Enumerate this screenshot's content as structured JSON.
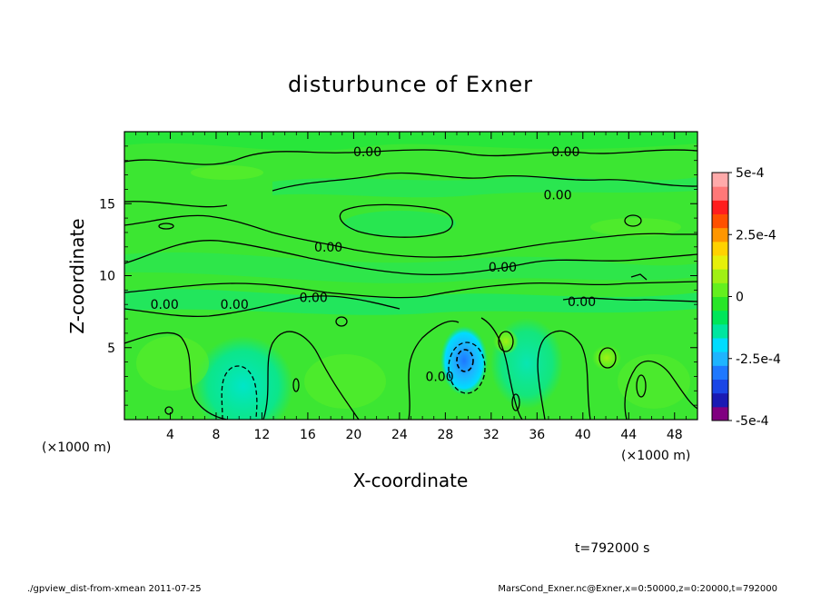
{
  "chart_data": {
    "type": "heatmap",
    "title": "disturbunce of Exner",
    "xlabel": "X-coordinate",
    "ylabel": "Z-coordinate",
    "x_unit": "(×1000 m)",
    "y_unit": "(×1000 m)",
    "xlim": [
      0,
      50
    ],
    "ylim": [
      0,
      20
    ],
    "x_ticks": [
      4,
      8,
      12,
      16,
      20,
      24,
      28,
      32,
      36,
      40,
      44,
      48
    ],
    "y_ticks": [
      5,
      10,
      15
    ],
    "colorbar": {
      "min": -0.0005,
      "max": 0.0005,
      "labels": [
        "5e-4",
        "2.5e-4",
        "0",
        "-2.5e-4",
        "-5e-4"
      ],
      "label_values": [
        0.0005,
        0.00025,
        0,
        -0.00025,
        -0.0005
      ],
      "colors": [
        "#800080",
        "#1a1ab4",
        "#1a46e6",
        "#1e78ff",
        "#1eb4ff",
        "#00dcff",
        "#00e6a0",
        "#00e65a",
        "#28e628",
        "#64f01e",
        "#a0f014",
        "#e6f00a",
        "#ffd200",
        "#ff9600",
        "#ff5000",
        "#ff1e1e",
        "#ff7878",
        "#ffaaaa"
      ]
    },
    "contour_labels": [
      {
        "text": "0.00",
        "x": 21.2,
        "y": 18.6
      },
      {
        "text": "0.00",
        "x": 38.5,
        "y": 18.6
      },
      {
        "text": "0.00",
        "x": 37.8,
        "y": 15.6
      },
      {
        "text": "0.00",
        "x": 17.8,
        "y": 12.0
      },
      {
        "text": "0.00",
        "x": 33.0,
        "y": 10.6
      },
      {
        "text": "0.00",
        "x": 16.5,
        "y": 8.5
      },
      {
        "text": "0.00",
        "x": 3.5,
        "y": 8.0
      },
      {
        "text": "0.00",
        "x": 9.6,
        "y": 8.0
      },
      {
        "text": "0.00",
        "x": 39.9,
        "y": 8.2
      },
      {
        "text": "0.00",
        "x": 27.5,
        "y": 3.0
      }
    ],
    "features": [
      {
        "kind": "low",
        "x": 29.5,
        "y": 4.2,
        "value": -0.0003
      },
      {
        "kind": "low",
        "x": 10.5,
        "y": 2.0,
        "value": -8e-05
      },
      {
        "kind": "high",
        "x": 33.5,
        "y": 5.4,
        "value": 0.0001
      },
      {
        "kind": "high",
        "x": 42.0,
        "y": 4.5,
        "value": 7e-05
      }
    ]
  },
  "annotation": {
    "time": "t=792000 s",
    "footer_left": "./gpview_dist-from-xmean  2011-07-25",
    "footer_right": "MarsCond_Exner.nc@Exner,x=0:50000,z=0:20000,t=792000"
  }
}
